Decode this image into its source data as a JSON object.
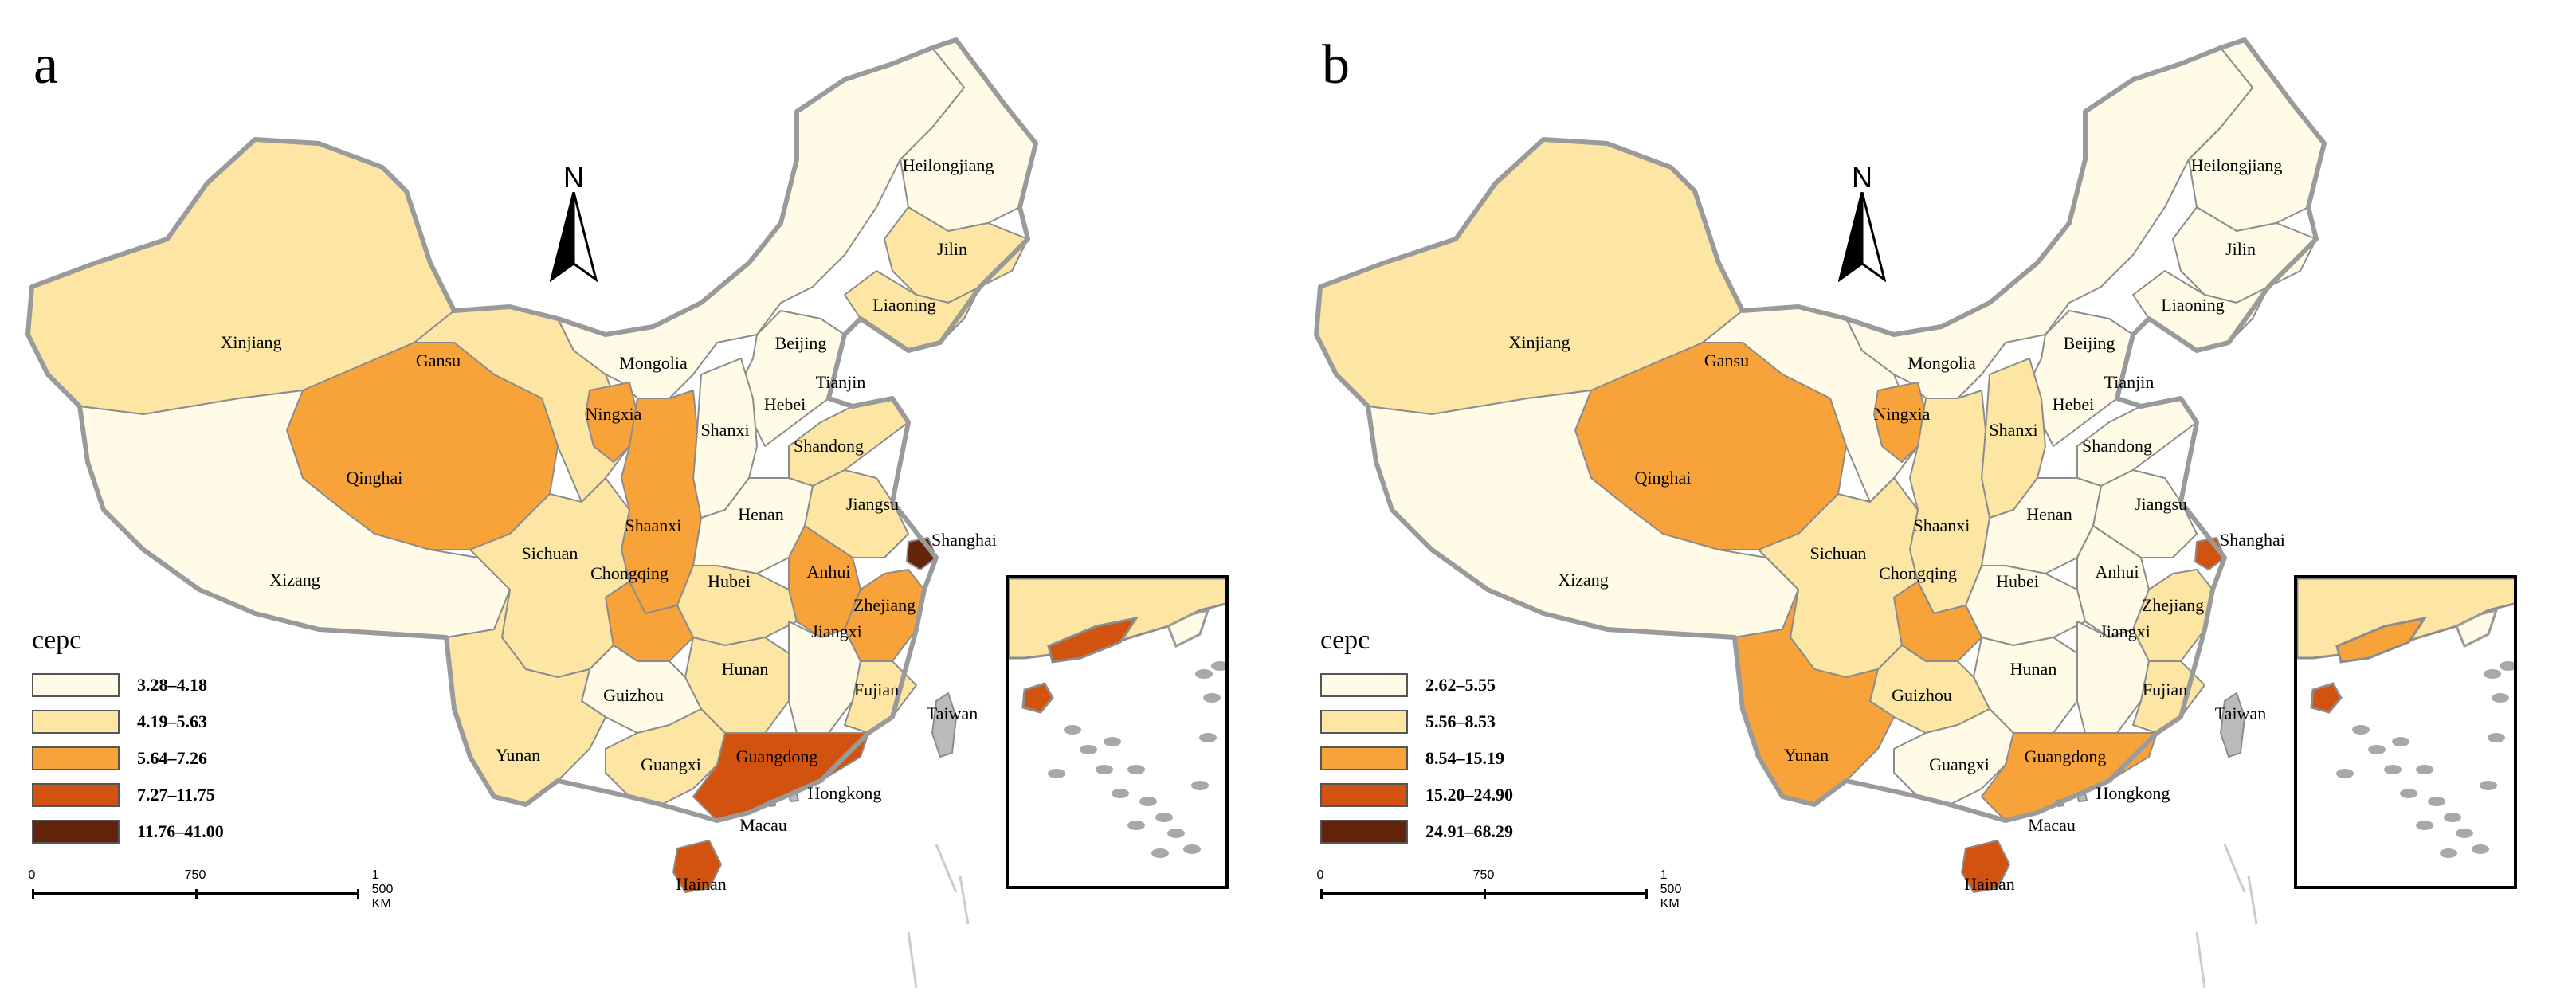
{
  "panels": [
    {
      "letter": "a",
      "legend": {
        "title": "cepc",
        "classes": [
          {
            "label": "3.28–4.18",
            "color": "#fffbe6"
          },
          {
            "label": "4.19–5.63",
            "color": "#fde6a3"
          },
          {
            "label": "5.64–7.26",
            "color": "#f8a33a"
          },
          {
            "label": "7.27–11.75",
            "color": "#d2530f"
          },
          {
            "label": "11.76–41.00",
            "color": "#642408"
          }
        ]
      },
      "scale": {
        "t0": "0",
        "t1": "750",
        "t2": "1 500 KM"
      },
      "north": "N",
      "provinces": [
        {
          "name": "Heilongjiang",
          "cls": 0
        },
        {
          "name": "Jilin",
          "cls": 1
        },
        {
          "name": "Liaoning",
          "cls": 1
        },
        {
          "name": "Xinjiang",
          "cls": 1
        },
        {
          "name": "Gansu",
          "cls": 1
        },
        {
          "name": "Mongolia",
          "cls": 0
        },
        {
          "name": "Beijing",
          "cls": 4
        },
        {
          "name": "Tianjin",
          "cls": 3
        },
        {
          "name": "Hebei",
          "cls": 0
        },
        {
          "name": "Ningxia",
          "cls": 2
        },
        {
          "name": "Shanxi",
          "cls": 0
        },
        {
          "name": "Shandong",
          "cls": 1
        },
        {
          "name": "Qinghai",
          "cls": 2
        },
        {
          "name": "Shaanxi",
          "cls": 2
        },
        {
          "name": "Henan",
          "cls": 0
        },
        {
          "name": "Jiangsu",
          "cls": 1
        },
        {
          "name": "Shanghai",
          "cls": 4
        },
        {
          "name": "Xizang",
          "cls": 0
        },
        {
          "name": "Sichuan",
          "cls": 1
        },
        {
          "name": "Hubei",
          "cls": 1
        },
        {
          "name": "Anhui",
          "cls": 2
        },
        {
          "name": "Chongqing",
          "cls": 2
        },
        {
          "name": "Zhejiang",
          "cls": 2
        },
        {
          "name": "Jiangxi",
          "cls": 0
        },
        {
          "name": "Hunan",
          "cls": 1
        },
        {
          "name": "Fujian",
          "cls": 1
        },
        {
          "name": "Guizhou",
          "cls": 0
        },
        {
          "name": "Taiwan",
          "cls": -1
        },
        {
          "name": "Yunan",
          "cls": 1
        },
        {
          "name": "Guangxi",
          "cls": 1
        },
        {
          "name": "Guangdong",
          "cls": 3
        },
        {
          "name": "Hongkong",
          "cls": -1
        },
        {
          "name": "Macau",
          "cls": -1
        },
        {
          "name": "Hainan",
          "cls": 3
        }
      ]
    },
    {
      "letter": "b",
      "legend": {
        "title": "cepc",
        "classes": [
          {
            "label": "2.62–5.55",
            "color": "#fffbe6"
          },
          {
            "label": "5.56–8.53",
            "color": "#fde6a3"
          },
          {
            "label": "8.54–15.19",
            "color": "#f8a33a"
          },
          {
            "label": "15.20–24.90",
            "color": "#d2530f"
          },
          {
            "label": "24.91–68.29",
            "color": "#642408"
          }
        ]
      },
      "scale": {
        "t0": "0",
        "t1": "750",
        "t2": "1 500 KM"
      },
      "north": "N",
      "provinces": [
        {
          "name": "Heilongjiang",
          "cls": 0
        },
        {
          "name": "Jilin",
          "cls": 0
        },
        {
          "name": "Liaoning",
          "cls": 0
        },
        {
          "name": "Xinjiang",
          "cls": 1
        },
        {
          "name": "Gansu",
          "cls": 0
        },
        {
          "name": "Mongolia",
          "cls": 0
        },
        {
          "name": "Beijing",
          "cls": 4
        },
        {
          "name": "Tianjin",
          "cls": 2
        },
        {
          "name": "Hebei",
          "cls": 0
        },
        {
          "name": "Ningxia",
          "cls": 2
        },
        {
          "name": "Shanxi",
          "cls": 1
        },
        {
          "name": "Shandong",
          "cls": 0
        },
        {
          "name": "Qinghai",
          "cls": 2
        },
        {
          "name": "Shaanxi",
          "cls": 1
        },
        {
          "name": "Henan",
          "cls": 0
        },
        {
          "name": "Jiangsu",
          "cls": 0
        },
        {
          "name": "Shanghai",
          "cls": 3
        },
        {
          "name": "Xizang",
          "cls": 0
        },
        {
          "name": "Sichuan",
          "cls": 1
        },
        {
          "name": "Hubei",
          "cls": 0
        },
        {
          "name": "Anhui",
          "cls": 0
        },
        {
          "name": "Chongqing",
          "cls": 2
        },
        {
          "name": "Zhejiang",
          "cls": 1
        },
        {
          "name": "Jiangxi",
          "cls": 0
        },
        {
          "name": "Hunan",
          "cls": 0
        },
        {
          "name": "Fujian",
          "cls": 1
        },
        {
          "name": "Guizhou",
          "cls": 1
        },
        {
          "name": "Taiwan",
          "cls": -1
        },
        {
          "name": "Yunan",
          "cls": 2
        },
        {
          "name": "Guangxi",
          "cls": 0
        },
        {
          "name": "Guangdong",
          "cls": 2
        },
        {
          "name": "Hongkong",
          "cls": -1
        },
        {
          "name": "Macau",
          "cls": -1
        },
        {
          "name": "Hainan",
          "cls": 3
        }
      ]
    }
  ]
}
